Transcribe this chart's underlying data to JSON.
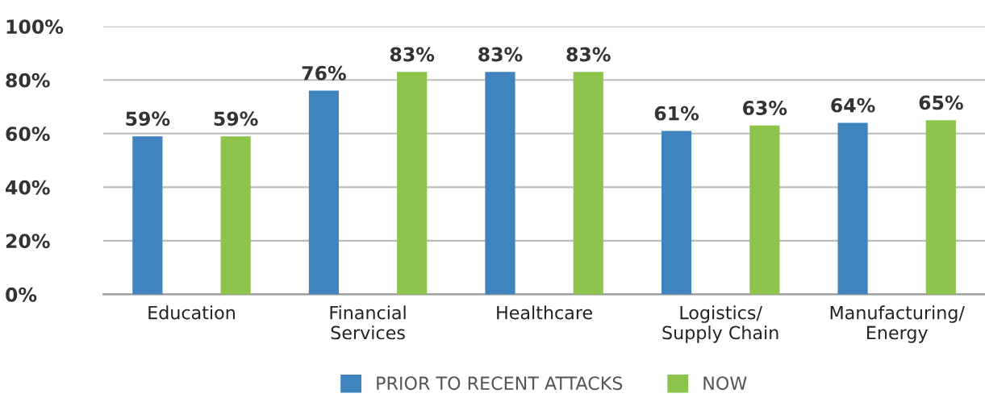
{
  "chart_data": {
    "type": "bar",
    "categories": [
      "Education",
      "Financial\nServices",
      "Healthcare",
      "Logistics/\nSupply Chain",
      "Manufacturing/\nEnergy"
    ],
    "series": [
      {
        "name": "PRIOR TO RECENT ATTACKS",
        "color": "#3f83bf",
        "values": [
          59,
          76,
          83,
          61,
          64
        ],
        "value_labels": [
          "59%",
          "76%",
          "83%",
          "61%",
          "64%"
        ]
      },
      {
        "name": "NOW",
        "color": "#8dc44b",
        "values": [
          59,
          83,
          83,
          63,
          65
        ],
        "value_labels": [
          "59%",
          "83%",
          "83%",
          "63%",
          "65%"
        ]
      }
    ],
    "ylim": [
      0,
      100
    ],
    "yticks": [
      {
        "value": 0,
        "label": "0%"
      },
      {
        "value": 20,
        "label": "20%"
      },
      {
        "value": 40,
        "label": "40%"
      },
      {
        "value": 60,
        "label": "60%"
      },
      {
        "value": 80,
        "label": "80%"
      },
      {
        "value": 100,
        "label": "100%"
      }
    ],
    "grid": "y",
    "legend": "bottom"
  }
}
